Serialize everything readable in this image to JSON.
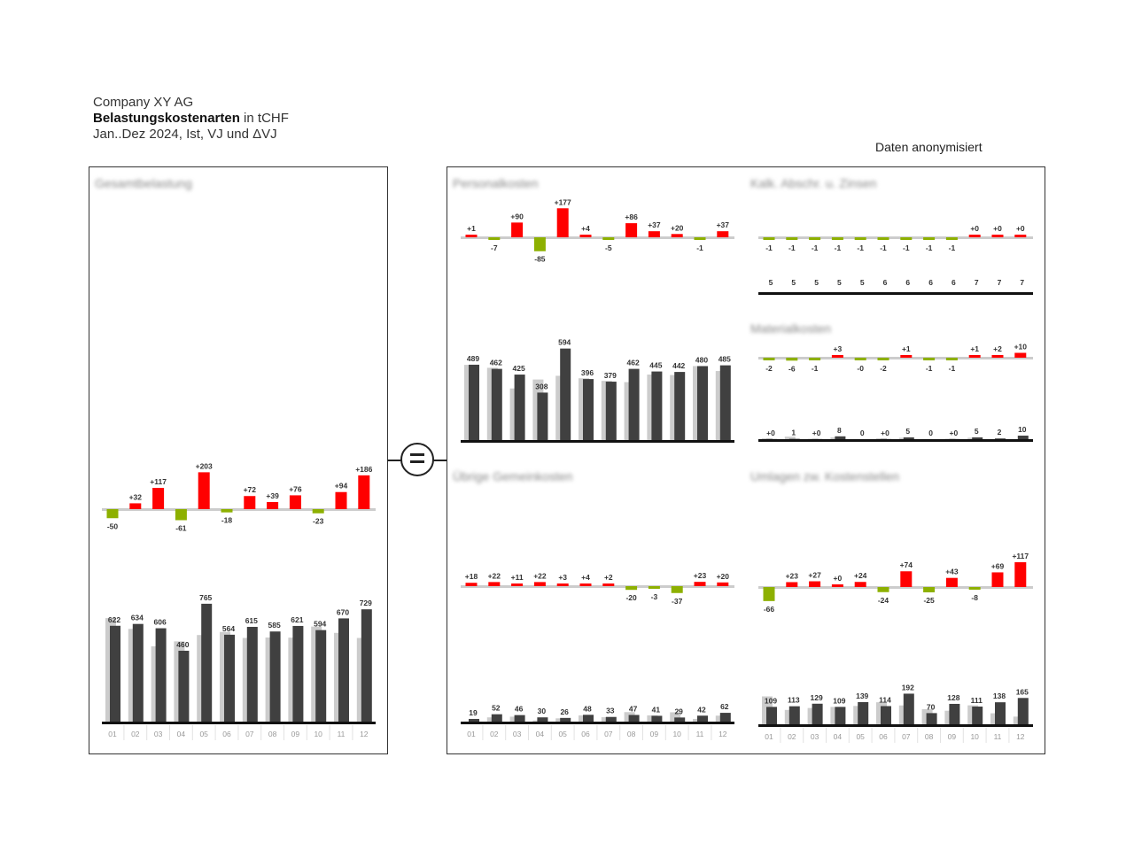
{
  "header": {
    "company": "Company XY AG",
    "title_bold": "Belastungskostenarten",
    "title_rest": " in tCHF",
    "period": "Jan..Dez 2024, Ist, VJ und ΔVJ"
  },
  "note": "Daten anonymisiert",
  "colors": {
    "pos": "#ff0000",
    "neg": "#8db000",
    "ist": "#404040",
    "vj": "#cccccc"
  },
  "chart_data": [
    {
      "type": "bar",
      "categories": [
        "01",
        "02",
        "03",
        "04",
        "05",
        "06",
        "07",
        "08",
        "09",
        "10",
        "11",
        "12"
      ],
      "series": [
        {
          "name": "Ist",
          "values": [
            622,
            634,
            606,
            460,
            765,
            564,
            615,
            585,
            621,
            594,
            670,
            729
          ]
        },
        {
          "name": "VJ",
          "values": [
            672,
            602,
            489,
            521,
            562,
            582,
            543,
            546,
            545,
            617,
            576,
            543
          ]
        }
      ],
      "delta_labels": [
        "-50",
        "+32",
        "+117",
        "-61",
        "+203",
        "-18",
        "+72",
        "+39",
        "+76",
        "-23",
        "+94",
        "+186"
      ],
      "value_labels": [
        "622",
        "634",
        "606",
        "460",
        "765",
        "564",
        "615",
        "585",
        "621",
        "594",
        "670",
        "729"
      ]
    },
    {
      "type": "bar",
      "series": [
        {
          "name": "Ist",
          "values": [
            489,
            462,
            425,
            308,
            594,
            396,
            379,
            462,
            445,
            442,
            480,
            485
          ]
        },
        {
          "name": "VJ",
          "values": [
            488,
            469,
            335,
            393,
            417,
            401,
            384,
            376,
            425,
            422,
            480,
            448
          ]
        }
      ],
      "delta_labels": [
        "+1",
        "-7",
        "+90",
        "-85",
        "+177",
        "+4",
        "-5",
        "+86",
        "+37",
        "+20",
        "-1",
        "+37"
      ],
      "value_labels": [
        "489",
        "462",
        "425",
        "308",
        "594",
        "396",
        "379",
        "462",
        "445",
        "442",
        "480",
        "485"
      ]
    },
    {
      "type": "bar",
      "series": [
        {
          "name": "Ist",
          "values": [
            5,
            5,
            5,
            5,
            5,
            6,
            6,
            6,
            6,
            7,
            7,
            7
          ]
        },
        {
          "name": "VJ",
          "values": [
            6,
            6,
            6,
            6,
            6,
            7,
            7,
            7,
            7,
            7,
            7,
            7
          ]
        }
      ],
      "delta_labels": [
        "-1",
        "-1",
        "-1",
        "-1",
        "-1",
        "-1",
        "-1",
        "-1",
        "-1",
        "+0",
        "+0",
        "+0"
      ],
      "value_labels": [
        "5",
        "5",
        "5",
        "5",
        "5",
        "6",
        "6",
        "6",
        "6",
        "7",
        "7",
        "7"
      ]
    },
    {
      "type": "bar",
      "series": [
        {
          "name": "Ist",
          "values": [
            0.4,
            1,
            0.4,
            8,
            0,
            0.4,
            5,
            0,
            0.4,
            5,
            2,
            10
          ]
        },
        {
          "name": "VJ",
          "values": [
            2.4,
            7,
            1.4,
            5,
            0.4,
            2.4,
            4,
            1,
            1.4,
            4,
            0,
            0
          ]
        }
      ],
      "delta_labels": [
        "-2",
        "-6",
        "-1",
        "+3",
        "-0",
        "-2",
        "+1",
        "-1",
        "-1",
        "+1",
        "+2",
        "+10"
      ],
      "value_labels": [
        "+0",
        "1",
        "+0",
        "8",
        "0",
        "+0",
        "5",
        "0",
        "+0",
        "5",
        "2",
        "10"
      ]
    },
    {
      "type": "bar",
      "categories": [
        "01",
        "02",
        "03",
        "04",
        "05",
        "06",
        "07",
        "08",
        "09",
        "10",
        "11",
        "12"
      ],
      "series": [
        {
          "name": "Ist",
          "values": [
            19,
            52,
            46,
            30,
            26,
            48,
            33,
            47,
            41,
            29,
            42,
            62
          ]
        },
        {
          "name": "VJ",
          "values": [
            1,
            30,
            35,
            8,
            23,
            44,
            31,
            67,
            44,
            66,
            19,
            42
          ]
        }
      ],
      "delta_labels": [
        "+18",
        "+22",
        "+11",
        "+22",
        "+3",
        "+4",
        "+2",
        "-20",
        "-3",
        "-37",
        "+23",
        "+20"
      ],
      "value_labels": [
        "19",
        "52",
        "46",
        "30",
        "26",
        "48",
        "33",
        "47",
        "41",
        "29",
        "42",
        "62"
      ]
    },
    {
      "type": "bar",
      "categories": [
        "01",
        "02",
        "03",
        "04",
        "05",
        "06",
        "07",
        "08",
        "09",
        "10",
        "11",
        "12"
      ],
      "series": [
        {
          "name": "Ist",
          "values": [
            109,
            113,
            129,
            109,
            139,
            114,
            192,
            70,
            128,
            111,
            138,
            165
          ]
        },
        {
          "name": "VJ",
          "values": [
            175,
            90,
            102,
            109,
            115,
            138,
            118,
            95,
            85,
            119,
            69,
            48
          ]
        }
      ],
      "delta_labels": [
        "-66",
        "+23",
        "+27",
        "+0",
        "+24",
        "-24",
        "+74",
        "-25",
        "+43",
        "-8",
        "+69",
        "+117"
      ],
      "value_labels": [
        "109",
        "113",
        "129",
        "109",
        "139",
        "114",
        "192",
        "70",
        "128",
        "111",
        "138",
        "165"
      ]
    }
  ]
}
